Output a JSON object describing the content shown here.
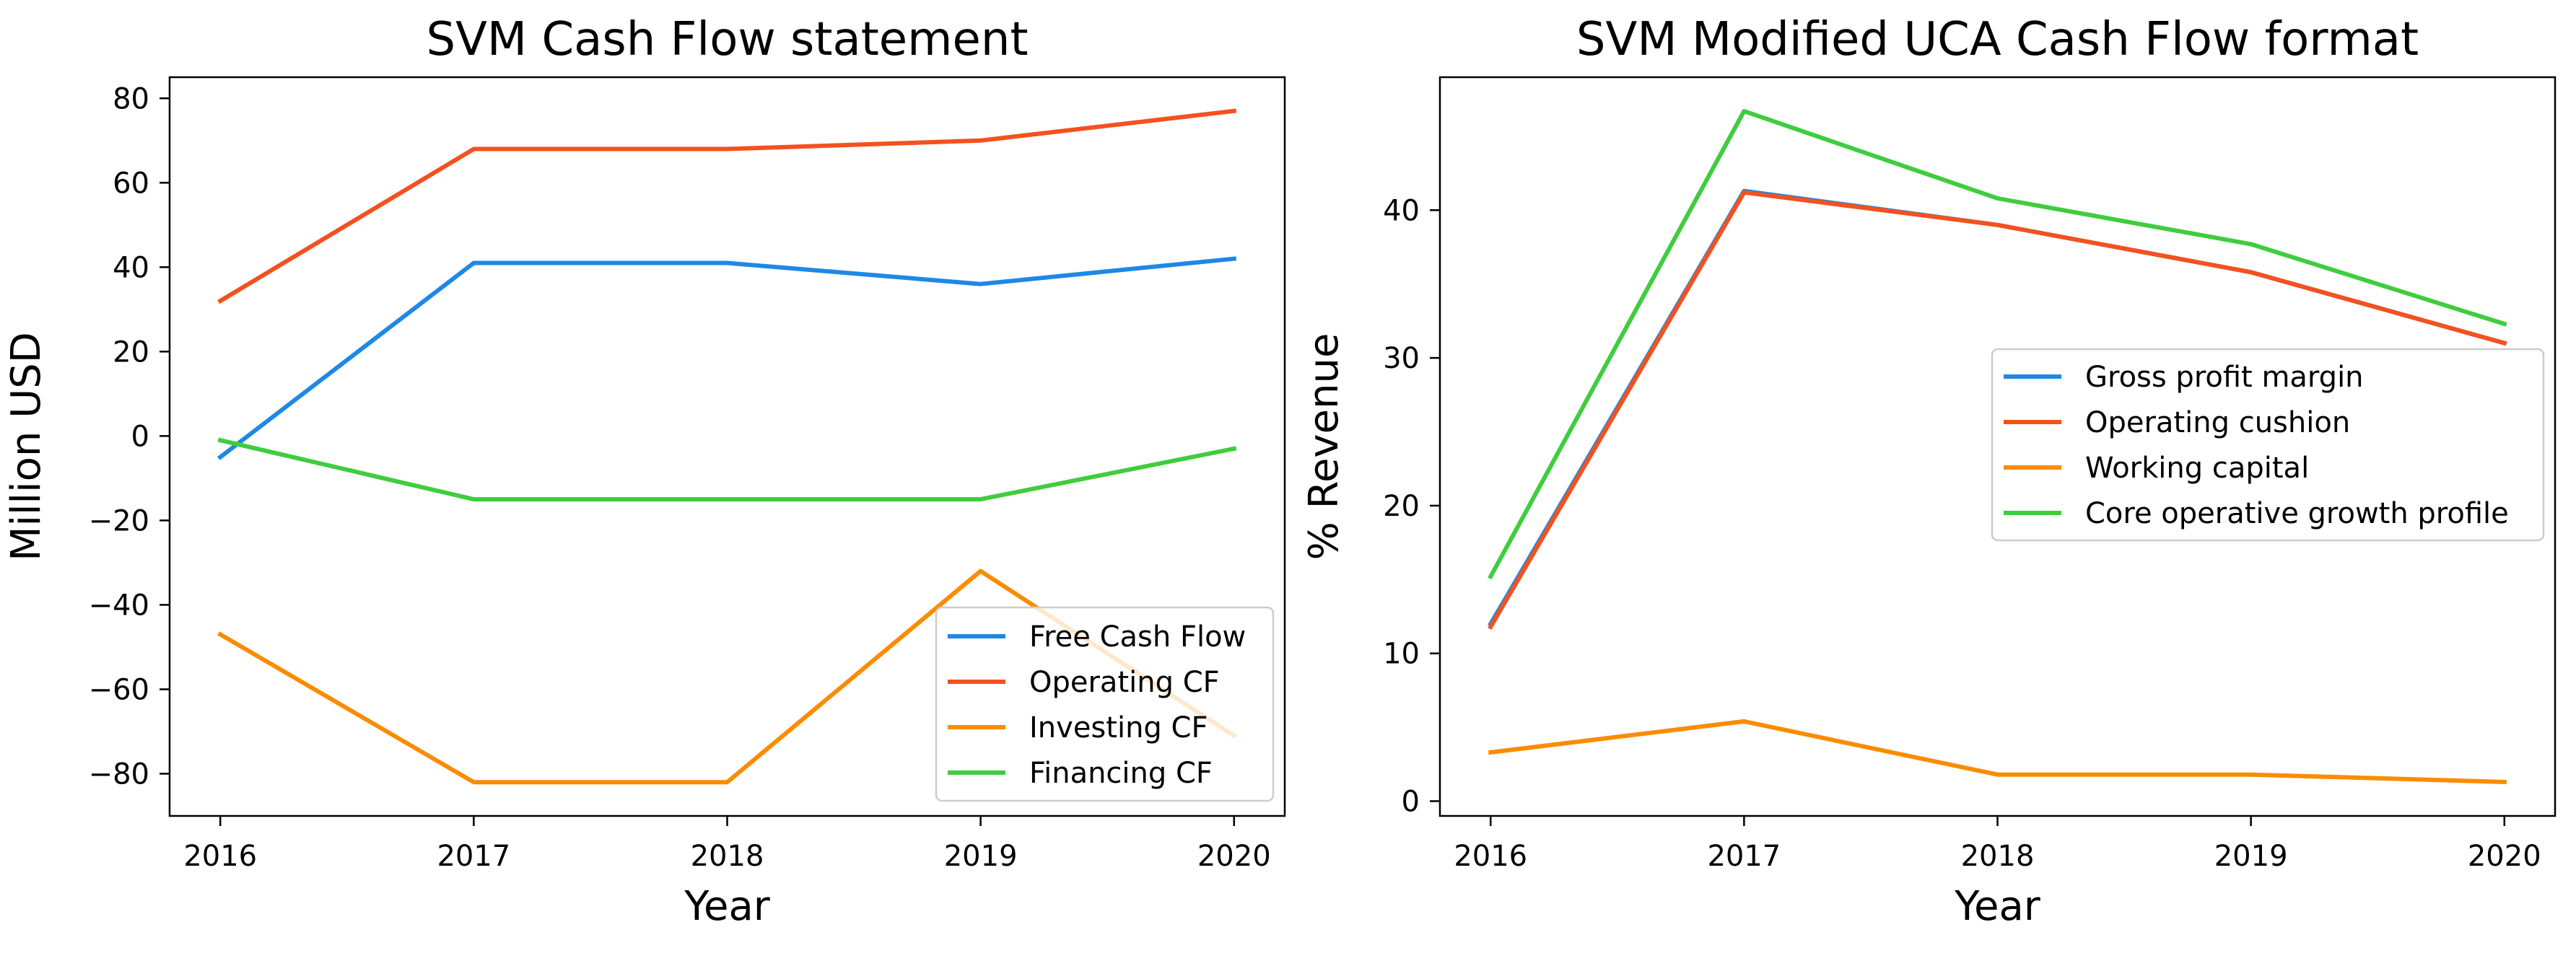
{
  "chart_data": [
    {
      "type": "line",
      "title": "SVM Cash Flow statement",
      "xlabel": "Year",
      "ylabel": "Million USD",
      "x": [
        2016,
        2017,
        2018,
        2019,
        2020
      ],
      "xlim": [
        2015.8,
        2020.2
      ],
      "ylim": [
        -90,
        85
      ],
      "yticks": [
        -80,
        -60,
        -40,
        -20,
        0,
        20,
        40,
        60,
        80
      ],
      "legend_loc": "lower-right",
      "grid": false,
      "series": [
        {
          "name": "Free Cash Flow",
          "color": "#1e88e5",
          "values": [
            -5,
            41,
            41,
            36,
            42
          ]
        },
        {
          "name": "Operating CF",
          "color": "#f4511e",
          "values": [
            32,
            68,
            68,
            70,
            77
          ]
        },
        {
          "name": "Investing CF",
          "color": "#fb8c00",
          "values": [
            -47,
            -82,
            -82,
            -32,
            -71
          ]
        },
        {
          "name": "Financing CF",
          "color": "#3fcd3f",
          "values": [
            -1,
            -15,
            -15,
            -15,
            -3
          ]
        }
      ]
    },
    {
      "type": "line",
      "title": "SVM Modified UCA Cash Flow format",
      "xlabel": "Year",
      "ylabel": "% Revenue",
      "x": [
        2016,
        2017,
        2018,
        2019,
        2020
      ],
      "xlim": [
        2015.8,
        2020.2
      ],
      "ylim": [
        -1.0,
        49.0
      ],
      "yticks": [
        0,
        10,
        20,
        30,
        40
      ],
      "legend_loc": "center-right",
      "grid": false,
      "series": [
        {
          "name": "Gross profit margin",
          "color": "#1e88e5",
          "values": [
            12,
            41.3,
            39,
            35.8,
            31
          ]
        },
        {
          "name": "Operating cushion",
          "color": "#f4511e",
          "values": [
            11.8,
            41.2,
            39,
            35.8,
            31
          ]
        },
        {
          "name": "Working capital",
          "color": "#fb8c00",
          "values": [
            3.3,
            5.4,
            1.8,
            1.8,
            1.3
          ]
        },
        {
          "name": "Core operative growth profile",
          "color": "#3fcd3f",
          "values": [
            15.2,
            46.7,
            40.8,
            37.7,
            32.3
          ]
        }
      ]
    }
  ]
}
